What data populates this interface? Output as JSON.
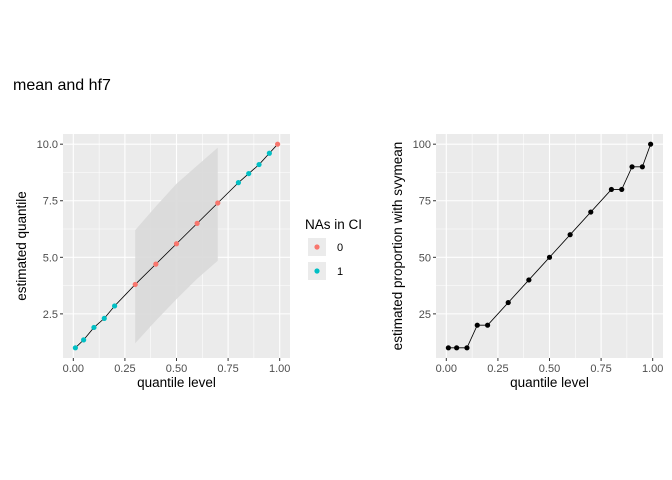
{
  "title": "mean and hf7",
  "colors": {
    "na0": "#F8766D",
    "na1": "#00BFC4",
    "panel": "#EBEBEB",
    "ribbon": "#D9D9D9",
    "line": "#000000"
  },
  "chart_data": [
    {
      "type": "scatter",
      "xlabel": "quantile level",
      "ylabel": "estimated quantile",
      "xlim": [
        -0.05,
        1.05
      ],
      "ylim": [
        0.55,
        10.45
      ],
      "xticks": [
        0.0,
        0.25,
        0.5,
        0.75,
        1.0
      ],
      "xtick_labels": [
        "0.00",
        "0.25",
        "0.50",
        "0.75",
        "1.00"
      ],
      "yticks": [
        2.5,
        5.0,
        7.5,
        10.0
      ],
      "ytick_labels": [
        "2.5",
        "5.0",
        "7.5",
        "10.0"
      ],
      "x": [
        0.01,
        0.05,
        0.1,
        0.15,
        0.2,
        0.3,
        0.4,
        0.5,
        0.6,
        0.7,
        0.8,
        0.85,
        0.9,
        0.95,
        0.99
      ],
      "y": [
        1.0,
        1.35,
        1.9,
        2.3,
        2.85,
        3.8,
        4.7,
        5.6,
        6.5,
        7.4,
        8.3,
        8.7,
        9.1,
        9.6,
        10.0
      ],
      "na_in_ci": [
        "1",
        "1",
        "1",
        "1",
        "1",
        "0",
        "0",
        "0",
        "0",
        "0",
        "1",
        "1",
        "1",
        "1",
        "0"
      ],
      "ribbon": {
        "x": [
          0.3,
          0.4,
          0.5,
          0.6,
          0.7
        ],
        "lower": [
          1.2,
          2.2,
          3.15,
          4.05,
          4.85
        ],
        "upper": [
          6.2,
          7.25,
          8.25,
          9.05,
          9.85
        ]
      },
      "legend": {
        "title": "NAs in CI",
        "entries": [
          "0",
          "1"
        ],
        "placement": "right"
      },
      "grid": true
    },
    {
      "type": "line",
      "xlabel": "quantile level",
      "ylabel": "estimated proportion with svymean",
      "xlim": [
        -0.05,
        1.05
      ],
      "ylim": [
        5.5,
        104.5
      ],
      "xticks": [
        0.0,
        0.25,
        0.5,
        0.75,
        1.0
      ],
      "xtick_labels": [
        "0.00",
        "0.25",
        "0.50",
        "0.75",
        "1.00"
      ],
      "yticks": [
        25,
        50,
        75,
        100
      ],
      "ytick_labels": [
        "25",
        "50",
        "75",
        "100"
      ],
      "x": [
        0.01,
        0.05,
        0.1,
        0.15,
        0.2,
        0.3,
        0.4,
        0.5,
        0.6,
        0.7,
        0.8,
        0.85,
        0.9,
        0.95,
        0.99
      ],
      "y": [
        10,
        10,
        10,
        20,
        20,
        30,
        40,
        50,
        60,
        70,
        80,
        80,
        90,
        90,
        100
      ],
      "grid": true
    }
  ]
}
